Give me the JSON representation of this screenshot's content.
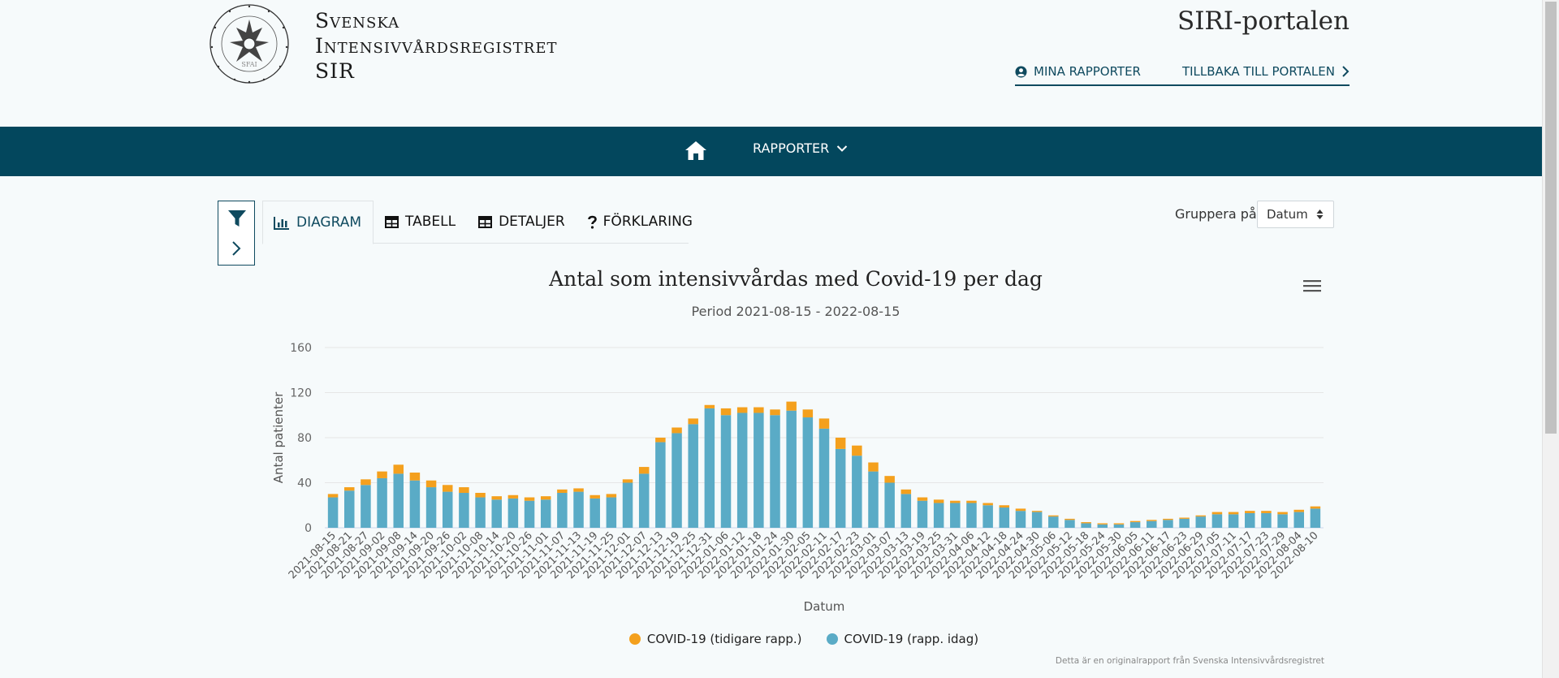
{
  "header": {
    "brand_lines": [
      "Svenska",
      "Intensivvårdsregistret",
      "SIR"
    ],
    "portal_title": "SIRI-portalen",
    "links": {
      "my_reports": "MINA RAPPORTER",
      "back": "TILLBAKA TILL PORTALEN"
    }
  },
  "nav": {
    "reports": "RAPPORTER"
  },
  "tabs": [
    {
      "label": "DIAGRAM",
      "active": true
    },
    {
      "label": "TABELL"
    },
    {
      "label": "DETALJER"
    },
    {
      "label": "FÖRKLARING"
    }
  ],
  "group": {
    "label": "Gruppera på:",
    "value": "Datum"
  },
  "colors": {
    "primary": "#03475d",
    "earlier": "#f4a01d",
    "today": "#5aabc6"
  },
  "icons": [
    "home-icon",
    "user-circle-icon",
    "chevron-right-icon",
    "chevron-down-icon",
    "filter-icon",
    "bar-chart-icon",
    "table-icon",
    "question-icon",
    "hamburger-icon",
    "sort-updown-icon"
  ],
  "footer": {
    "credit": "Detta är en originalrapport från Svenska Intensivvårdsregistret"
  },
  "chart_data": {
    "type": "bar",
    "title": "Antal som intensivvårdas med Covid-19 per dag",
    "subtitle": "Period 2021-08-15 - 2022-08-15",
    "xlabel": "Datum",
    "ylabel": "Antal patienter",
    "ylim": [
      0,
      160
    ],
    "yticks": [
      0,
      40,
      80,
      120,
      160
    ],
    "grid": true,
    "legend_position": "bottom-center",
    "categories": [
      "2021-08-15",
      "2021-08-21",
      "2021-08-27",
      "2021-09-02",
      "2021-09-08",
      "2021-09-14",
      "2021-09-20",
      "2021-09-26",
      "2021-10-02",
      "2021-10-08",
      "2021-10-14",
      "2021-10-20",
      "2021-10-26",
      "2021-11-01",
      "2021-11-07",
      "2021-11-13",
      "2021-11-19",
      "2021-11-25",
      "2021-12-01",
      "2021-12-07",
      "2021-12-13",
      "2021-12-19",
      "2021-12-25",
      "2021-12-31",
      "2022-01-06",
      "2022-01-12",
      "2022-01-18",
      "2022-01-24",
      "2022-01-30",
      "2022-02-05",
      "2022-02-11",
      "2022-02-17",
      "2022-02-23",
      "2022-03-01",
      "2022-03-07",
      "2022-03-13",
      "2022-03-19",
      "2022-03-25",
      "2022-03-31",
      "2022-04-06",
      "2022-04-12",
      "2022-04-18",
      "2022-04-24",
      "2022-04-30",
      "2022-05-06",
      "2022-05-12",
      "2022-05-18",
      "2022-05-24",
      "2022-05-30",
      "2022-06-05",
      "2022-06-11",
      "2022-06-17",
      "2022-06-23",
      "2022-06-29",
      "2022-07-05",
      "2022-07-11",
      "2022-07-17",
      "2022-07-23",
      "2022-07-29",
      "2022-08-04",
      "2022-08-10"
    ],
    "series": [
      {
        "name": "COVID-19 (tidigare rapp.)",
        "color": "#f4a01d",
        "values": [
          3,
          3,
          5,
          6,
          8,
          7,
          6,
          6,
          5,
          4,
          3,
          3,
          3,
          3,
          3,
          3,
          3,
          3,
          3,
          6,
          4,
          5,
          5,
          3,
          6,
          5,
          5,
          5,
          8,
          7,
          9,
          10,
          9,
          8,
          6,
          4,
          3,
          3,
          2,
          2,
          2,
          2,
          2,
          1,
          1,
          1,
          1,
          1,
          1,
          1,
          1,
          1,
          1,
          1,
          2,
          2,
          2,
          2,
          2,
          2,
          2
        ]
      },
      {
        "name": "COVID-19 (rapp. idag)",
        "color": "#5aabc6",
        "values": [
          27,
          33,
          38,
          44,
          48,
          42,
          36,
          32,
          31,
          27,
          25,
          26,
          24,
          25,
          31,
          32,
          26,
          27,
          40,
          48,
          76,
          84,
          92,
          106,
          100,
          102,
          102,
          100,
          104,
          98,
          88,
          70,
          64,
          50,
          40,
          30,
          24,
          22,
          22,
          22,
          20,
          18,
          15,
          14,
          10,
          7,
          4,
          3,
          3,
          5,
          6,
          7,
          8,
          10,
          12,
          12,
          13,
          13,
          12,
          14,
          17
        ]
      }
    ]
  }
}
